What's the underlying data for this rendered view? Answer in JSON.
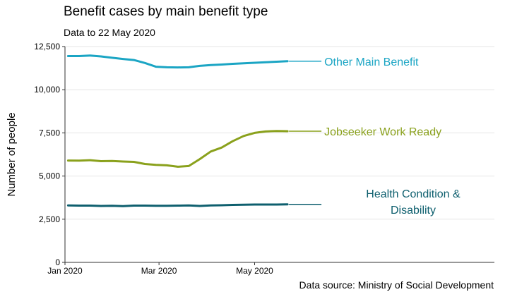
{
  "chart_data": {
    "type": "line",
    "title": "Benefit cases by main benefit type",
    "subtitle": "Data to 22 May 2020",
    "ylabel": "Number of people",
    "xlabel": "",
    "source": "Data source: Ministry of Social Development",
    "ylim": [
      0,
      12500
    ],
    "xlim": [
      "2020-01-01",
      "2020-10-01"
    ],
    "y_ticks": [
      0,
      2500,
      5000,
      7500,
      10000,
      12500
    ],
    "y_tick_labels": [
      "0",
      "2,500",
      "5,000",
      "7,500",
      "10,000",
      "12,500"
    ],
    "x_ticks": [
      "2020-01-01",
      "2020-03-01",
      "2020-05-01"
    ],
    "x_tick_labels": [
      "Jan 2020",
      "Mar 2020",
      "May 2020"
    ],
    "grid": "horizontal",
    "x": [
      "2020-01-03",
      "2020-01-10",
      "2020-01-17",
      "2020-01-24",
      "2020-01-31",
      "2020-02-07",
      "2020-02-14",
      "2020-02-21",
      "2020-02-28",
      "2020-03-06",
      "2020-03-13",
      "2020-03-20",
      "2020-03-27",
      "2020-04-03",
      "2020-04-10",
      "2020-04-17",
      "2020-04-24",
      "2020-05-01",
      "2020-05-08",
      "2020-05-15",
      "2020-05-22"
    ],
    "series": [
      {
        "name": "Other Main Benefit",
        "label_lines": [
          "Other Main Benefit"
        ],
        "color": "#1BA5C4",
        "values": [
          11950,
          11950,
          11980,
          11930,
          11850,
          11780,
          11720,
          11550,
          11330,
          11300,
          11290,
          11300,
          11380,
          11430,
          11460,
          11500,
          11530,
          11560,
          11590,
          11620,
          11650
        ]
      },
      {
        "name": "Jobseeker Work Ready",
        "label_lines": [
          "Jobseeker Work Ready"
        ],
        "color": "#8AA11C",
        "values": [
          5900,
          5890,
          5920,
          5860,
          5870,
          5840,
          5820,
          5700,
          5650,
          5620,
          5540,
          5580,
          5980,
          6420,
          6650,
          7020,
          7320,
          7500,
          7580,
          7610,
          7600
        ]
      },
      {
        "name": "Health Condition & Disability",
        "label_lines": [
          "Health Condition &",
          "Disability"
        ],
        "color": "#0E5F6E",
        "values": [
          3300,
          3290,
          3290,
          3270,
          3280,
          3260,
          3290,
          3290,
          3280,
          3280,
          3290,
          3300,
          3270,
          3300,
          3310,
          3330,
          3340,
          3350,
          3350,
          3350,
          3360
        ]
      }
    ]
  }
}
